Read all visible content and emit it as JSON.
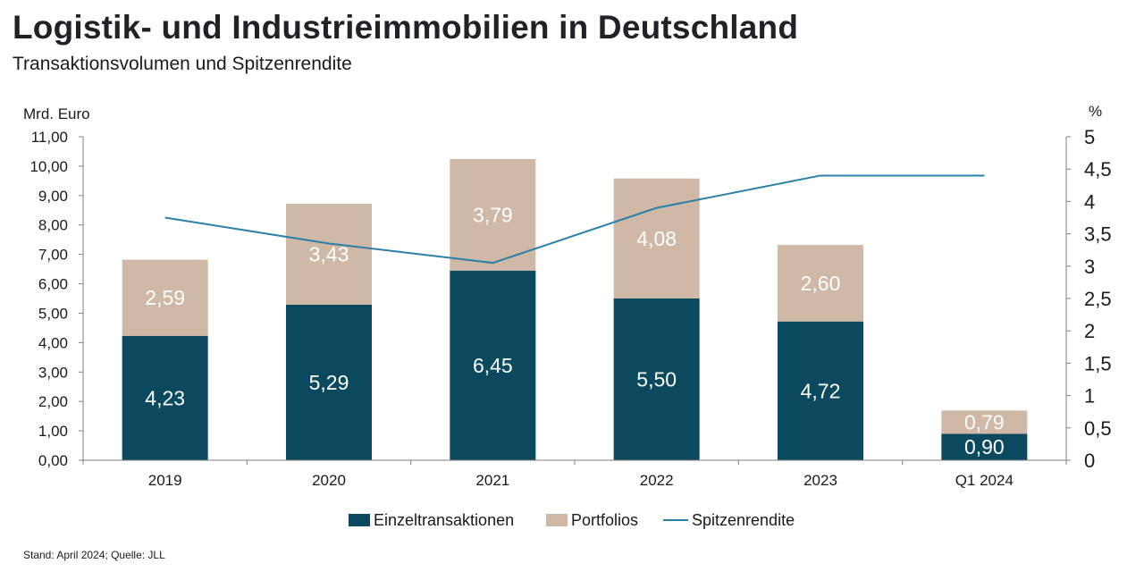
{
  "title": "Logistik- und Industrieimmobilien in Deutschland",
  "subtitle": "Transaktionsvolumen und Spitzenrendite",
  "footnote": "Stand: April 2024; Quelle: JLL",
  "colors": {
    "einzel": "#0b4a5e",
    "portfolio": "#cfb8a5",
    "line": "#2a80a8",
    "axis": "#7f7f7f"
  },
  "chart_data": {
    "type": "bar",
    "stacked": true,
    "categories": [
      "2019",
      "2020",
      "2021",
      "2022",
      "2023",
      "Q1 2024"
    ],
    "series": [
      {
        "name": "Einzeltransaktionen",
        "values": [
          4.23,
          5.29,
          6.45,
          5.5,
          4.72,
          0.9
        ],
        "labels": [
          "4,23",
          "5,29",
          "6,45",
          "5,50",
          "4,72",
          "0,90"
        ]
      },
      {
        "name": "Portfolios",
        "values": [
          2.59,
          3.43,
          3.79,
          4.08,
          2.6,
          0.79
        ],
        "labels": [
          "2,59",
          "3,43",
          "3,79",
          "4,08",
          "2,60",
          "0,79"
        ]
      }
    ],
    "line_series": {
      "name": "Spitzenrendite",
      "axis": "right",
      "values": [
        3.75,
        3.35,
        3.05,
        3.9,
        4.4,
        4.4
      ]
    },
    "y_left": {
      "label": "Mrd. Euro",
      "ylim": [
        0,
        11
      ],
      "ticks": [
        "0,00",
        "1,00",
        "2,00",
        "3,00",
        "4,00",
        "5,00",
        "6,00",
        "7,00",
        "8,00",
        "9,00",
        "10,00",
        "11,00"
      ]
    },
    "y_right": {
      "label": "%",
      "ylim": [
        0,
        5
      ],
      "ticks": [
        "0",
        "0,5",
        "1",
        "1,5",
        "2",
        "2,5",
        "3",
        "3,5",
        "4",
        "4,5",
        "5"
      ]
    },
    "grid": false,
    "legend_position": "bottom"
  }
}
